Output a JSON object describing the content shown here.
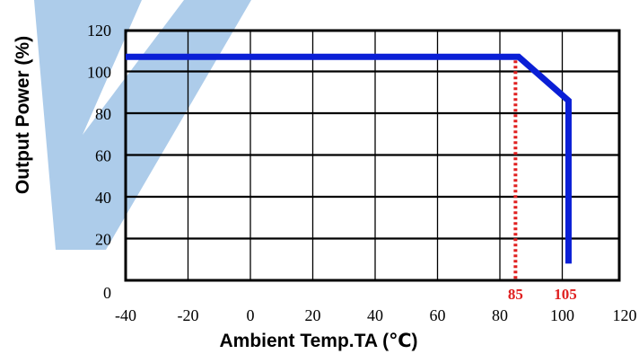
{
  "chart_data": {
    "type": "line",
    "xlabel": "Ambient Temp.TA (℃)",
    "ylabel": "Output Power (%)",
    "xlim": [
      -40,
      120
    ],
    "ylim": [
      0,
      120
    ],
    "x_ticks": [
      -40,
      -20,
      0,
      20,
      40,
      60,
      80,
      100,
      120
    ],
    "y_ticks": [
      0,
      20,
      40,
      60,
      80,
      100,
      120
    ],
    "grid": true,
    "series": [
      {
        "color": "#0a1fd6",
        "points": [
          [
            -40,
            107
          ],
          [
            86,
            107
          ],
          [
            102,
            86
          ],
          [
            102,
            8
          ]
        ]
      }
    ],
    "markers": [
      {
        "x": 85,
        "label": "85",
        "color": "#e02020",
        "style": "dotted"
      }
    ],
    "annotations": [
      {
        "x": 105,
        "label": "105",
        "color": "#e02020"
      }
    ]
  },
  "colors": {
    "frame": "#000000",
    "watermark": "#9fc3e6"
  }
}
